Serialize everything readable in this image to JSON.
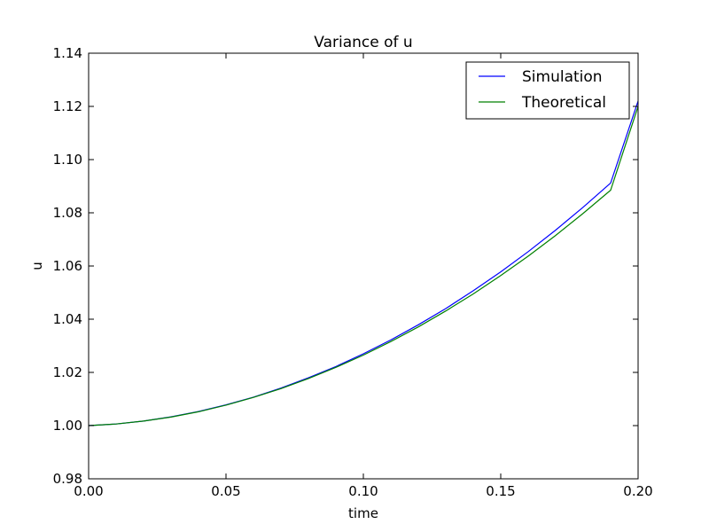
{
  "chart_data": {
    "type": "line",
    "title": "Variance of u",
    "xlabel": "time",
    "ylabel": "u",
    "xlim": [
      0.0,
      0.2
    ],
    "ylim": [
      0.98,
      1.14
    ],
    "xticks": [
      "0.00",
      "0.05",
      "0.10",
      "0.15",
      "0.20"
    ],
    "yticks": [
      "0.98",
      "1.00",
      "1.02",
      "1.04",
      "1.06",
      "1.08",
      "1.10",
      "1.12",
      "1.14"
    ],
    "grid": false,
    "legend_position": "top-right",
    "x": [
      0.0,
      0.01,
      0.02,
      0.03,
      0.04,
      0.05,
      0.06,
      0.07,
      0.08,
      0.09,
      0.1,
      0.11,
      0.12,
      0.13,
      0.14,
      0.15,
      0.16,
      0.17,
      0.18,
      0.19,
      0.2
    ],
    "series": [
      {
        "name": "Simulation",
        "color": "#0000ff",
        "values": [
          1.0,
          1.0006,
          1.0017,
          1.0033,
          1.0053,
          1.0078,
          1.0107,
          1.0141,
          1.018,
          1.0222,
          1.027,
          1.0322,
          1.0379,
          1.044,
          1.0507,
          1.0578,
          1.0654,
          1.0735,
          1.0821,
          1.0912,
          1.122
        ]
      },
      {
        "name": "Theoretical",
        "color": "#008000",
        "values": [
          1.0,
          1.0006,
          1.0017,
          1.0032,
          1.0052,
          1.0077,
          1.0106,
          1.0139,
          1.0177,
          1.0219,
          1.0265,
          1.0316,
          1.0371,
          1.0431,
          1.0495,
          1.0564,
          1.0637,
          1.0715,
          1.0798,
          1.0885,
          1.12
        ]
      }
    ]
  }
}
